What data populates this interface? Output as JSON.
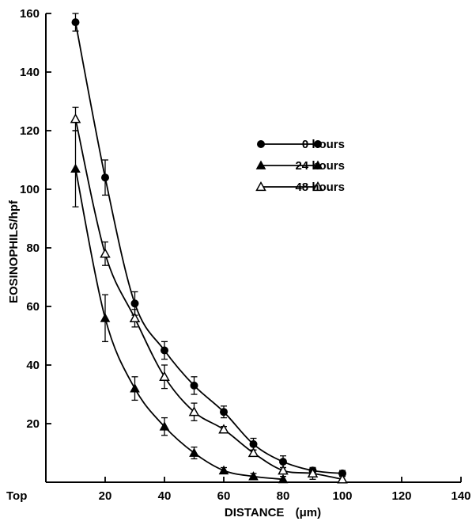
{
  "chart_data": {
    "type": "line",
    "xlabel": "DISTANCE",
    "xlabel_unit": "(μm)",
    "ylabel": "EOSINOPHILS/hpf",
    "xlim": [
      0,
      140
    ],
    "ylim": [
      0,
      160
    ],
    "x_ticks": [
      {
        "value": 0,
        "label": "Top"
      },
      {
        "value": 20,
        "label": "20"
      },
      {
        "value": 40,
        "label": "40"
      },
      {
        "value": 60,
        "label": "60"
      },
      {
        "value": 80,
        "label": "80"
      },
      {
        "value": 100,
        "label": "100"
      },
      {
        "value": 120,
        "label": "120"
      },
      {
        "value": 140,
        "label": "140"
      }
    ],
    "y_ticks": [
      {
        "value": 20,
        "label": "20"
      },
      {
        "value": 40,
        "label": "40"
      },
      {
        "value": 60,
        "label": "60"
      },
      {
        "value": 80,
        "label": "80"
      },
      {
        "value": 100,
        "label": "100"
      },
      {
        "value": 120,
        "label": "120"
      },
      {
        "value": 140,
        "label": "140"
      },
      {
        "value": 160,
        "label": "160"
      }
    ],
    "grid": false,
    "legend_position": "upper-right",
    "series": [
      {
        "name": "0 hours",
        "marker": "filled-circle",
        "x": [
          10,
          20,
          30,
          40,
          50,
          60,
          70,
          80,
          90,
          100
        ],
        "y": [
          157,
          104,
          61,
          45,
          33,
          24,
          13,
          7,
          4,
          3
        ],
        "err": [
          3,
          6,
          4,
          3,
          3,
          2,
          2,
          2,
          1,
          1
        ]
      },
      {
        "name": "24 hours",
        "marker": "filled-triangle",
        "x": [
          10,
          20,
          30,
          40,
          50,
          60,
          70,
          80
        ],
        "y": [
          107,
          56,
          32,
          19,
          10,
          4,
          2,
          1
        ],
        "err": [
          13,
          8,
          4,
          3,
          2,
          1,
          1,
          1
        ]
      },
      {
        "name": "48 hours",
        "marker": "open-triangle",
        "x": [
          10,
          20,
          30,
          40,
          50,
          60,
          70,
          80,
          90,
          100
        ],
        "y": [
          124,
          78,
          56,
          36,
          24,
          18,
          10,
          4,
          3,
          1
        ],
        "err": [
          4,
          4,
          3,
          4,
          3,
          1,
          1,
          1,
          2,
          1
        ]
      }
    ]
  }
}
